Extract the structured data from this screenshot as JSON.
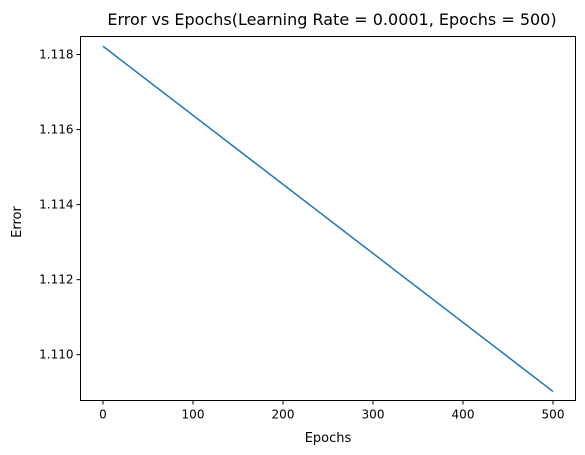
{
  "chart_data": {
    "type": "line",
    "title": "Error vs Epochs(Learning Rate = 0.0001, Epochs = 500)",
    "xlabel": "Epochs",
    "ylabel": "Error",
    "xlim": [
      -25,
      525
    ],
    "ylim": [
      1.10878,
      1.11848
    ],
    "xticks": [
      0,
      100,
      200,
      300,
      400,
      500
    ],
    "xtick_labels": [
      "0",
      "100",
      "200",
      "300",
      "400",
      "500"
    ],
    "yticks": [
      1.11,
      1.112,
      1.114,
      1.116,
      1.118
    ],
    "ytick_labels": [
      "1.110",
      "1.112",
      "1.114",
      "1.116",
      "1.118"
    ],
    "grid": false,
    "series": [
      {
        "color": "#1f77b4",
        "x": [
          0,
          500
        ],
        "y": [
          1.11822,
          1.10902
        ]
      }
    ]
  }
}
